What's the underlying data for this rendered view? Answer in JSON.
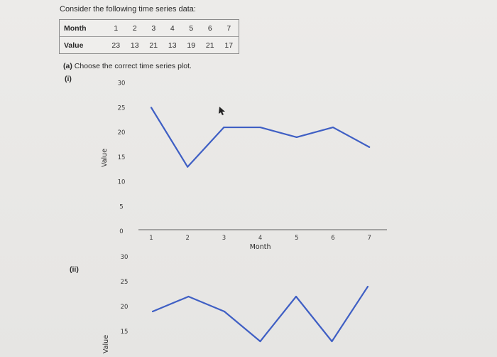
{
  "prompt_text": "Consider the following time series data:",
  "table": {
    "row1_label": "Month",
    "row2_label": "Value",
    "months": [
      "1",
      "2",
      "3",
      "4",
      "5",
      "6",
      "7"
    ],
    "values": [
      "23",
      "13",
      "21",
      "13",
      "19",
      "21",
      "17"
    ]
  },
  "question": {
    "part": "(a)",
    "text": "Choose the correct time series plot."
  },
  "options": [
    "(i)",
    "(ii)"
  ],
  "colors": {
    "line": "#3f5fc4",
    "axis": "#7a7a7a"
  },
  "chart_data": [
    {
      "type": "line",
      "option": "(i)",
      "x": [
        1,
        2,
        3,
        4,
        5,
        6,
        7
      ],
      "values": [
        25,
        13,
        21,
        21,
        19,
        21,
        17
      ],
      "xlabel": "Month",
      "ylabel": "Value",
      "yticks": [
        "0",
        "5",
        "10",
        "15",
        "20",
        "25",
        "30"
      ],
      "xticks": [
        "1",
        "2",
        "3",
        "4",
        "5",
        "6",
        "7"
      ],
      "ylim": [
        0,
        30
      ]
    },
    {
      "type": "line",
      "option": "(ii)",
      "x": [
        1,
        2,
        3,
        4,
        5,
        6,
        7
      ],
      "values": [
        19,
        22,
        19,
        13,
        22,
        13,
        24
      ],
      "xlabel": "",
      "ylabel": "Value",
      "yticks": [
        "15",
        "20",
        "25",
        "30"
      ],
      "xticks": [],
      "ylim": [
        0,
        30
      ]
    }
  ]
}
